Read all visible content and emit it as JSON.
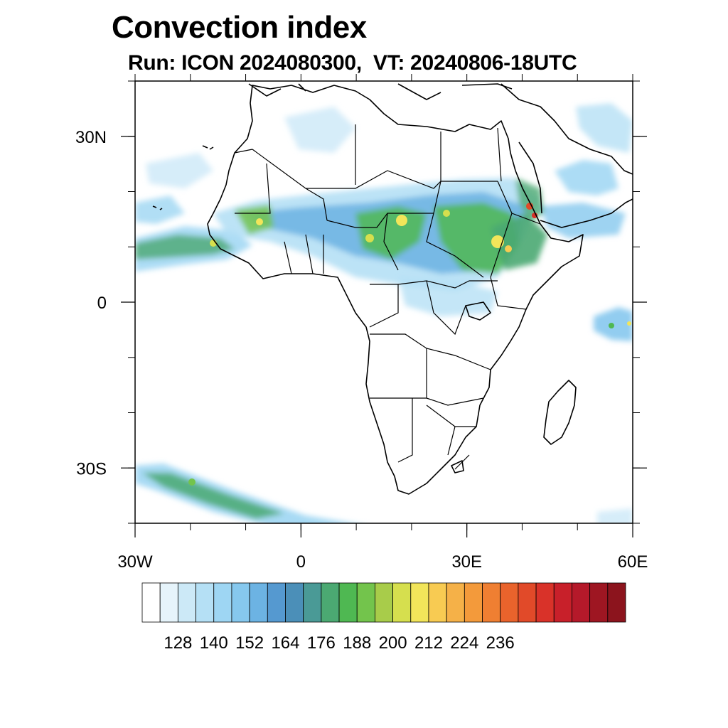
{
  "title": "Convection index",
  "subtitle": "Run: ICON 2024080300,  VT: 20240806-18UTC",
  "map": {
    "lon_range": [
      -30,
      60
    ],
    "lat_range": [
      -40,
      40
    ],
    "lon_ticks": [
      {
        "value": -30,
        "label": "30W"
      },
      {
        "value": 0,
        "label": "0"
      },
      {
        "value": 30,
        "label": "30E"
      },
      {
        "value": 60,
        "label": "60E"
      }
    ],
    "lat_ticks": [
      {
        "value": 30,
        "label": "30N"
      },
      {
        "value": 0,
        "label": "0"
      },
      {
        "value": -30,
        "label": "30S"
      }
    ],
    "coastline_color": "#000000",
    "background": "#ffffff"
  },
  "colorbar": {
    "colors": [
      "#ffffff",
      "#e6f4fb",
      "#cce9f7",
      "#b5e0f5",
      "#9ed6f3",
      "#86c8ee",
      "#6cb3e3",
      "#5599d0",
      "#4b8fb8",
      "#4a9a96",
      "#4ba972",
      "#4fb852",
      "#73c44c",
      "#a8cc4a",
      "#d6df4e",
      "#f2e55a",
      "#f8cb52",
      "#f5b148",
      "#f39a3b",
      "#ef7f32",
      "#e9632c",
      "#e14a29",
      "#d93229",
      "#c8202a",
      "#b5192a",
      "#9e1622",
      "#8c141d"
    ],
    "labels": [
      "128",
      "140",
      "152",
      "164",
      "176",
      "188",
      "200",
      "212",
      "224",
      "236"
    ]
  }
}
